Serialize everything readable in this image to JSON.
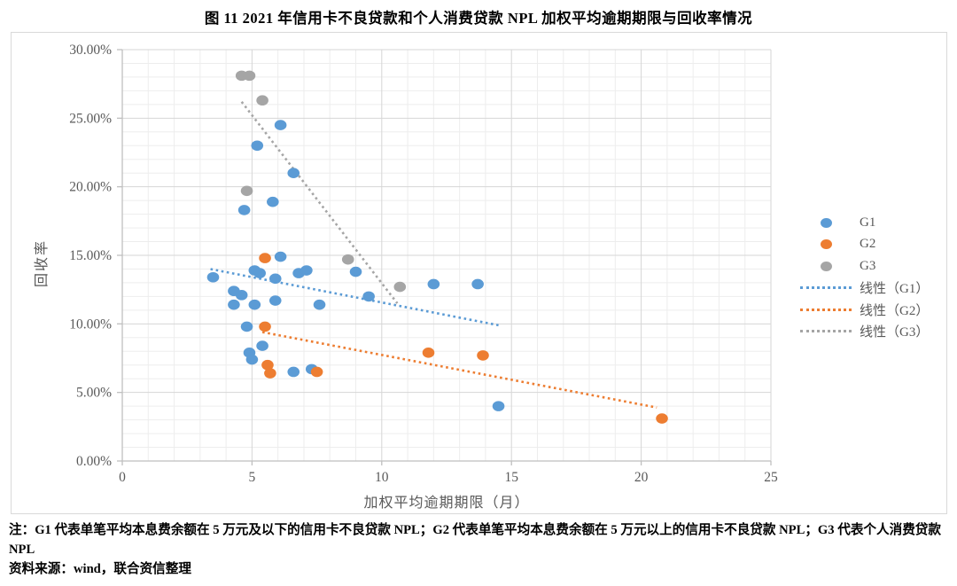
{
  "title": "图 11  2021 年信用卡不良贷款和个人消费贷款 NPL 加权平均逾期期限与回收率情况",
  "notes": {
    "note_line": "注：G1 代表单笔平均本息费余额在 5 万元及以下的信用卡不良贷款 NPL；G2 代表单笔平均本息费余额在 5 万元以上的信用卡不良贷款 NPL；G3 代表个人消费贷款 NPL",
    "source_line": "资料来源：wind，联合资信整理"
  },
  "colors": {
    "g1_blue": "#5B9BD5",
    "g2_orange": "#ED7D31",
    "g3_gray": "#A5A5A5",
    "axis_text": "#595959",
    "axis_line": "#BFBFBF",
    "grid_minor": "#EDEDED",
    "grid_major": "#D6D6D6",
    "box_border": "#D9D9D9"
  },
  "chart_data": {
    "type": "scatter",
    "title": "",
    "xlabel": "加权平均逾期期限（月）",
    "ylabel": "回收率",
    "xlim": [
      0,
      25
    ],
    "ylim": [
      0,
      30
    ],
    "xticks": [
      0,
      5,
      10,
      15,
      20,
      25
    ],
    "yticks": [
      0,
      5,
      10,
      15,
      20,
      25,
      30
    ],
    "ytick_labels": [
      "0.00%",
      "5.00%",
      "10.00%",
      "15.00%",
      "20.00%",
      "25.00%",
      "30.00%"
    ],
    "x_minor_step": 1,
    "y_minor_step": 1,
    "grid": "on",
    "legend_position": "right",
    "series": [
      {
        "name": "G1",
        "color": "#5B9BD5",
        "points": [
          [
            3.5,
            13.4
          ],
          [
            4.3,
            12.4
          ],
          [
            4.3,
            11.4
          ],
          [
            4.6,
            12.1
          ],
          [
            4.7,
            18.3
          ],
          [
            4.8,
            9.8
          ],
          [
            4.9,
            7.9
          ],
          [
            5.0,
            7.4
          ],
          [
            5.1,
            13.9
          ],
          [
            5.1,
            11.4
          ],
          [
            5.2,
            23.0
          ],
          [
            5.3,
            13.7
          ],
          [
            5.4,
            8.4
          ],
          [
            5.8,
            18.9
          ],
          [
            5.9,
            13.3
          ],
          [
            5.9,
            11.7
          ],
          [
            6.1,
            24.5
          ],
          [
            6.1,
            14.9
          ],
          [
            6.6,
            21.0
          ],
          [
            6.6,
            6.5
          ],
          [
            6.8,
            13.7
          ],
          [
            7.1,
            13.9
          ],
          [
            7.3,
            6.7
          ],
          [
            7.6,
            11.4
          ],
          [
            9.0,
            13.8
          ],
          [
            9.5,
            12.0
          ],
          [
            12.0,
            12.9
          ],
          [
            13.7,
            12.9
          ],
          [
            14.5,
            4.0
          ]
        ]
      },
      {
        "name": "G2",
        "color": "#ED7D31",
        "points": [
          [
            5.5,
            14.8
          ],
          [
            5.5,
            9.8
          ],
          [
            5.6,
            7.0
          ],
          [
            5.7,
            6.4
          ],
          [
            7.5,
            6.5
          ],
          [
            11.8,
            7.9
          ],
          [
            13.9,
            7.7
          ],
          [
            20.8,
            3.1
          ]
        ]
      },
      {
        "name": "G3",
        "color": "#A5A5A5",
        "points": [
          [
            4.6,
            28.1
          ],
          [
            4.9,
            28.1
          ],
          [
            5.4,
            26.3
          ],
          [
            4.8,
            19.7
          ],
          [
            8.7,
            14.7
          ],
          [
            10.7,
            12.7
          ]
        ]
      }
    ],
    "trendlines": [
      {
        "name": "线性（G1）",
        "color": "#5B9BD5",
        "from": [
          3.4,
          14.0
        ],
        "to": [
          14.5,
          9.9
        ]
      },
      {
        "name": "线性（G2）",
        "color": "#ED7D31",
        "from": [
          5.4,
          9.4
        ],
        "to": [
          20.6,
          3.9
        ]
      },
      {
        "name": "线性（G3）",
        "color": "#A5A5A5",
        "from": [
          4.6,
          26.2
        ],
        "to": [
          10.6,
          11.5
        ]
      }
    ]
  }
}
